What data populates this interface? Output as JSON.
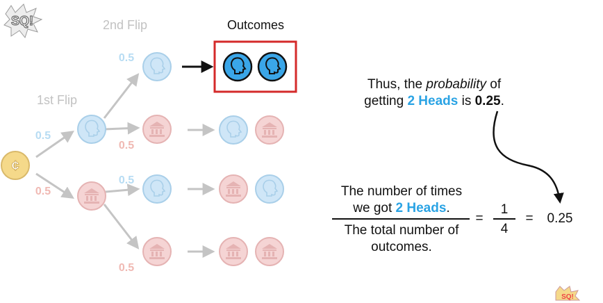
{
  "logo": {
    "text": "StatQuest",
    "style": "comic-burst"
  },
  "headers": {
    "first_flip": "1st Flip",
    "second_flip": "2nd Flip",
    "outcomes": "Outcomes"
  },
  "probabilities": {
    "heads": "0.5",
    "tails": "0.5"
  },
  "tree": {
    "root_icon": "coin-cent-icon",
    "first_flip": [
      "heads",
      "tails"
    ],
    "outcomes": [
      {
        "first": "heads",
        "second": "heads",
        "highlighted": true
      },
      {
        "first": "heads",
        "second": "tails",
        "highlighted": false
      },
      {
        "first": "tails",
        "second": "heads",
        "highlighted": false
      },
      {
        "first": "tails",
        "second": "tails",
        "highlighted": false
      }
    ]
  },
  "icons": {
    "heads": "head-profile-icon",
    "tails": "bank-building-icon"
  },
  "colors": {
    "heads": "#3aa6e8",
    "heads_faded": "#cfe6f7",
    "tails_faded": "#f5d4d4",
    "coin": "#f5d98a",
    "highlight_box": "#d42a2a",
    "heads_text": "#2aa3e4",
    "faded_heads_text": "#b7dcf3",
    "faded_tails_text": "#f0b9b3"
  },
  "statement": {
    "line1_prefix": "Thus, the ",
    "line1_italic": "probability",
    "line1_suffix": " of",
    "line2_prefix": "getting ",
    "line2_highlight": "2 Heads",
    "line2_mid": " is ",
    "line2_bold": "0.25",
    "line2_suffix": "."
  },
  "equation": {
    "numerator_line1": "The number of times",
    "numerator_line2_prefix": "we got ",
    "numerator_line2_highlight": "2 Heads",
    "numerator_line2_suffix": ".",
    "denominator_line1": "The total number of",
    "denominator_line2": "outcomes.",
    "equals": "=",
    "fraction_numerator": "1",
    "fraction_denominator": "4",
    "equals2": "=",
    "result": "0.25"
  }
}
